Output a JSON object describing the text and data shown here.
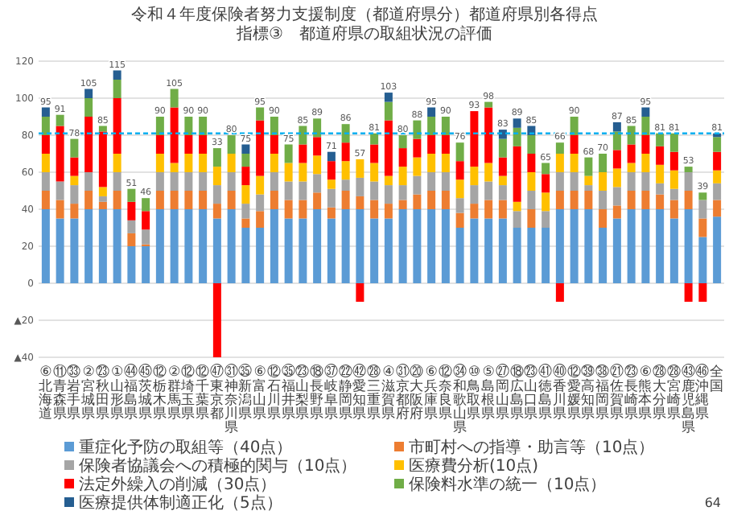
{
  "chart_data": {
    "type": "bar",
    "stacked": true,
    "title": "令和４年度保険者努力支援制度（都道府県分）都道府県別各得点",
    "subtitle": "指標③　都道府県の取組状況の評価",
    "categories": [
      "⑥北海道",
      "⑪青森県",
      "㉝岩手県",
      "②宮城県",
      "㉓秋田県",
      "①山形県",
      "㊹福島県",
      "㊺茨城県",
      "⑫栃木県",
      "②群馬県",
      "⑫埼玉県",
      "⑫千葉県",
      "㊼東京都",
      "㉛神奈川県",
      "㉟新潟県",
      "⑥富山県",
      "⑫石川県",
      "㉟福井県",
      "㉓山梨県",
      "⑱長野県",
      "㊲岐阜県",
      "㉒静岡県",
      "㊷愛知県",
      "㉘三重県",
      "④滋賀県",
      "㉛京都府",
      "⑳大阪府",
      "⑥兵庫県",
      "⑫奈良県",
      "㉞和歌山県",
      "⑩鳥取県",
      "⑤島根県",
      "㉗岡山県",
      "⑱広島県",
      "㉓山口県",
      "㊶徳島県",
      "㊵香川県",
      "⑫愛媛県",
      "㊴高知県",
      "㊳福岡県",
      "㉑佐賀県",
      "㉓長崎県",
      "⑥熊本県",
      "㉘大分県",
      "㉘宮崎県",
      "㊸鹿児島県",
      "㊻沖縄県",
      "全国"
    ],
    "series": [
      {
        "name": "重症化予防の取組等（40点）",
        "color": "#5b9bd5",
        "values": [
          40,
          35,
          35,
          40,
          40,
          40,
          20,
          20,
          40,
          40,
          40,
          40,
          35,
          40,
          30,
          30,
          40,
          35,
          35,
          40,
          35,
          40,
          40,
          35,
          35,
          40,
          40,
          40,
          40,
          30,
          35,
          35,
          35,
          30,
          30,
          30,
          40,
          40,
          40,
          30,
          35,
          40,
          40,
          40,
          35,
          40,
          25,
          36
        ]
      },
      {
        "name": "市町村への指導・助言等（10点）",
        "color": "#ed7d31",
        "values": [
          10,
          10,
          8,
          10,
          4,
          10,
          7,
          1,
          10,
          10,
          10,
          10,
          8,
          10,
          5,
          9,
          10,
          10,
          10,
          9,
          6,
          10,
          7,
          10,
          8,
          5,
          8,
          10,
          10,
          8,
          8,
          10,
          10,
          null,
          10,
          null,
          10,
          10,
          10,
          10,
          7,
          10,
          10,
          8,
          10,
          10,
          10,
          9
        ]
      },
      {
        "name": "保険者協議会への積極的関与（10点）",
        "color": "#a5a5a5",
        "values": [
          10,
          10,
          10,
          10,
          3,
          10,
          7,
          8,
          10,
          10,
          10,
          10,
          10,
          10,
          8,
          9,
          10,
          10,
          10,
          10,
          10,
          6,
          10,
          10,
          10,
          8,
          10,
          10,
          10,
          8,
          10,
          10,
          8,
          9,
          10,
          9,
          10,
          10,
          3,
          10,
          10,
          10,
          10,
          6,
          6,
          10,
          10,
          9
        ]
      },
      {
        "name": "医療費分析(10点)",
        "color": "#ffc000",
        "values": [
          10,
          null,
          5,
          null,
          5,
          10,
          null,
          null,
          10,
          5,
          10,
          10,
          10,
          10,
          10,
          10,
          10,
          10,
          10,
          10,
          5,
          10,
          10,
          10,
          5,
          10,
          10,
          10,
          10,
          10,
          10,
          10,
          5,
          5,
          10,
          10,
          10,
          10,
          5,
          10,
          10,
          5,
          10,
          10,
          10,
          null,
          null,
          7
        ]
      },
      {
        "name": "法定外繰入の削減（30点）",
        "color": "#ff0000",
        "values": [
          10,
          30,
          10,
          30,
          30,
          30,
          10,
          10,
          10,
          30,
          10,
          10,
          -40,
          null,
          10,
          30,
          10,
          null,
          10,
          10,
          10,
          10,
          -10,
          10,
          30,
          10,
          10,
          10,
          10,
          10,
          30,
          30,
          10,
          30,
          10,
          10,
          -10,
          10,
          null,
          null,
          10,
          10,
          10,
          10,
          10,
          -10,
          -10,
          10
        ]
      },
      {
        "name": "保険料水準の統一（10点）",
        "color": "#70ad47",
        "values": [
          10,
          6,
          10,
          10,
          3,
          10,
          7,
          7,
          10,
          10,
          10,
          10,
          10,
          10,
          7,
          7,
          10,
          10,
          10,
          10,
          null,
          10,
          null,
          6,
          10,
          7,
          10,
          10,
          10,
          10,
          null,
          3,
          10,
          10,
          10,
          6,
          6,
          10,
          10,
          10,
          10,
          10,
          10,
          7,
          10,
          3,
          4,
          8
        ]
      },
      {
        "name": "医療提供体制適正化（5点）",
        "color": "#255e91",
        "values": [
          5,
          null,
          null,
          5,
          null,
          5,
          null,
          null,
          null,
          null,
          null,
          null,
          null,
          null,
          5,
          null,
          null,
          null,
          null,
          null,
          5,
          null,
          null,
          null,
          5,
          null,
          null,
          5,
          null,
          null,
          null,
          null,
          5,
          5,
          5,
          null,
          null,
          null,
          null,
          null,
          5,
          null,
          5,
          null,
          null,
          null,
          null,
          2
        ]
      }
    ],
    "totals": [
      "95",
      "91",
      "78",
      "105",
      "85",
      "115",
      "51",
      "46",
      "90",
      "105",
      "90",
      "90",
      "33",
      "80",
      "75",
      "95",
      "90",
      "75",
      "85",
      "89",
      "71",
      "86",
      "57",
      "81",
      "103",
      "80",
      "88",
      "95",
      "90",
      "76",
      "93",
      "98",
      "83",
      "89",
      "85",
      "65",
      "66",
      "90",
      "68",
      "70",
      "87",
      "85",
      "95",
      "81",
      "81",
      "53",
      "39",
      "81"
    ],
    "ylim": [
      -40,
      120
    ],
    "yticks": [
      {
        "value": -40,
        "label": "▲40"
      },
      {
        "value": -20,
        "label": "▲20"
      },
      0,
      20,
      40,
      60,
      80,
      100,
      120
    ],
    "grid": "y",
    "ref_lines": [
      {
        "axis": "y",
        "value": 81,
        "color": "#00b0f0",
        "line_style": "dashed"
      }
    ],
    "legend": "bottom",
    "annotations": [
      "64"
    ]
  }
}
